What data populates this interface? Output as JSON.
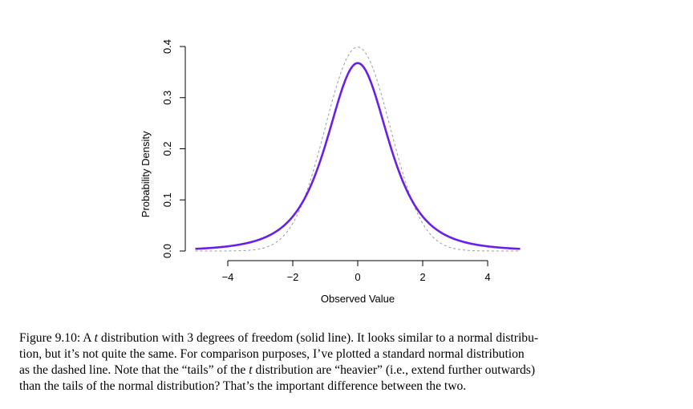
{
  "chart_data": {
    "type": "line",
    "title": "",
    "xlabel": "Observed Value",
    "ylabel": "Probability Density",
    "xlim": [
      -5,
      5
    ],
    "ylim": [
      0,
      0.4
    ],
    "x_ticks": [
      -4,
      -2,
      0,
      2,
      4
    ],
    "x_tick_labels": [
      "−4",
      "−2",
      "0",
      "2",
      "4"
    ],
    "y_ticks": [
      0,
      0.1,
      0.2,
      0.3,
      0.4
    ],
    "y_tick_labels": [
      "0.0",
      "0.1",
      "0.2",
      "0.3",
      "0.4"
    ],
    "grid": false,
    "legend": "none",
    "series": [
      {
        "distribution": "t",
        "df": 3,
        "style": "solid",
        "color": "#6a1fe8",
        "x": [
          -5,
          -4,
          -3,
          -2,
          -1,
          0,
          1,
          2,
          3,
          4,
          5
        ],
        "values": [
          0.0042,
          0.0092,
          0.023,
          0.0675,
          0.2067,
          0.3676,
          0.2067,
          0.0675,
          0.023,
          0.0092,
          0.0042
        ]
      },
      {
        "distribution": "normal",
        "style": "dashed",
        "color": "#9a9a9a",
        "x": [
          -5,
          -4,
          -3,
          -2,
          -1,
          0,
          1,
          2,
          3,
          4,
          5
        ],
        "values": [
          0.0,
          0.0001,
          0.0044,
          0.054,
          0.242,
          0.3989,
          0.242,
          0.054,
          0.0044,
          0.0001,
          0.0
        ]
      }
    ]
  },
  "caption": {
    "line1_a": "Figure 9.10: A ",
    "line1_t": "t",
    "line1_b": " distribution with 3 degrees of freedom (solid line). It looks similar to a normal distribu-",
    "line2": "tion, but it’s not quite the same. For comparison purposes, I’ve plotted a standard normal distribution",
    "line3_a": "as the dashed line. Note that the “tails” of the ",
    "line3_t": "t",
    "line3_b": " distribution are “heavier” (i.e., extend further outwards)",
    "line4": "than the tails of the normal distribution? That’s the important difference between the two."
  }
}
